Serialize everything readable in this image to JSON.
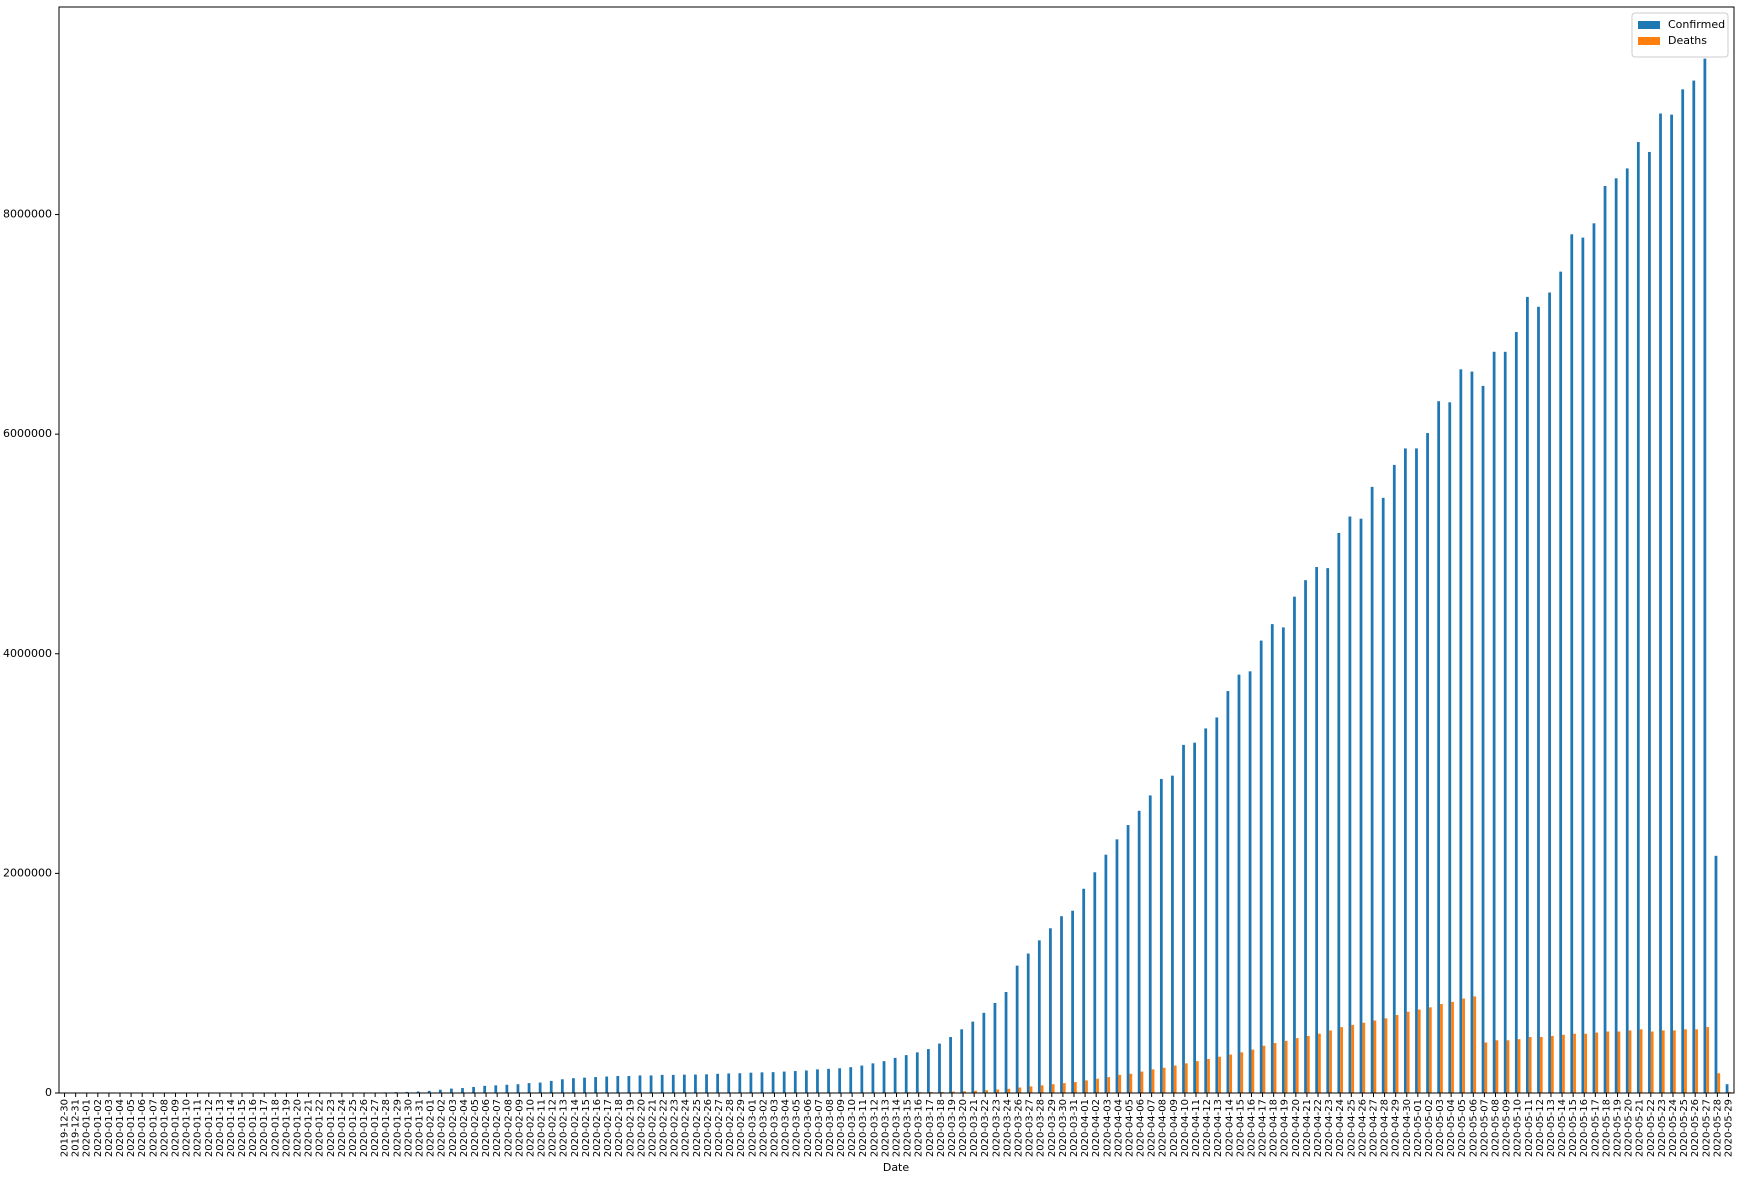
{
  "chart_data": {
    "type": "bar",
    "x_label": "Date",
    "categories": [
      "2019-12-30",
      "2019-12-31",
      "2020-01-01",
      "2020-01-02",
      "2020-01-03",
      "2020-01-04",
      "2020-01-05",
      "2020-01-06",
      "2020-01-07",
      "2020-01-08",
      "2020-01-09",
      "2020-01-10",
      "2020-01-11",
      "2020-01-12",
      "2020-01-13",
      "2020-01-14",
      "2020-01-15",
      "2020-01-16",
      "2020-01-17",
      "2020-01-18",
      "2020-01-19",
      "2020-01-20",
      "2020-01-21",
      "2020-01-22",
      "2020-01-23",
      "2020-01-24",
      "2020-01-25",
      "2020-01-26",
      "2020-01-27",
      "2020-01-28",
      "2020-01-29",
      "2020-01-30",
      "2020-01-31",
      "2020-02-01",
      "2020-02-02",
      "2020-02-03",
      "2020-02-04",
      "2020-02-05",
      "2020-02-06",
      "2020-02-07",
      "2020-02-08",
      "2020-02-09",
      "2020-02-10",
      "2020-02-11",
      "2020-02-12",
      "2020-02-13",
      "2020-02-14",
      "2020-02-15",
      "2020-02-16",
      "2020-02-17",
      "2020-02-18",
      "2020-02-19",
      "2020-02-20",
      "2020-02-21",
      "2020-02-22",
      "2020-02-23",
      "2020-02-24",
      "2020-02-25",
      "2020-02-26",
      "2020-02-27",
      "2020-02-28",
      "2020-02-29",
      "2020-03-01",
      "2020-03-02",
      "2020-03-03",
      "2020-03-04",
      "2020-03-05",
      "2020-03-06",
      "2020-03-07",
      "2020-03-08",
      "2020-03-09",
      "2020-03-10",
      "2020-03-11",
      "2020-03-12",
      "2020-03-13",
      "2020-03-14",
      "2020-03-15",
      "2020-03-16",
      "2020-03-17",
      "2020-03-18",
      "2020-03-19",
      "2020-03-20",
      "2020-03-21",
      "2020-03-22",
      "2020-03-23",
      "2020-03-24",
      "2020-03-26",
      "2020-03-27",
      "2020-03-28",
      "2020-03-29",
      "2020-03-30",
      "2020-03-31",
      "2020-04-01",
      "2020-04-02",
      "2020-04-03",
      "2020-04-04",
      "2020-04-05",
      "2020-04-06",
      "2020-04-07",
      "2020-04-08",
      "2020-04-09",
      "2020-04-10",
      "2020-04-11",
      "2020-04-12",
      "2020-04-13",
      "2020-04-14",
      "2020-04-15",
      "2020-04-16",
      "2020-04-17",
      "2020-04-18",
      "2020-04-19",
      "2020-04-20",
      "2020-04-21",
      "2020-04-22",
      "2020-04-23",
      "2020-04-24",
      "2020-04-25",
      "2020-04-26",
      "2020-04-27",
      "2020-04-28",
      "2020-04-29",
      "2020-04-30",
      "2020-05-01",
      "2020-05-02",
      "2020-05-03",
      "2020-05-04",
      "2020-05-05",
      "2020-05-06",
      "2020-05-07",
      "2020-05-08",
      "2020-05-09",
      "2020-05-10",
      "2020-05-11",
      "2020-05-12",
      "2020-05-13",
      "2020-05-14",
      "2020-05-15",
      "2020-05-16",
      "2020-05-17",
      "2020-05-18",
      "2020-05-19",
      "2020-05-20",
      "2020-05-21",
      "2020-05-22",
      "2020-05-23",
      "2020-05-24",
      "2020-05-25",
      "2020-05-26",
      "2020-05-27",
      "2020-05-28",
      "2020-05-29"
    ],
    "series": [
      {
        "name": "Confirmed",
        "color": "#1f77b4",
        "values": [
          27,
          27,
          27,
          27,
          44,
          44,
          59,
          59,
          59,
          59,
          59,
          41,
          41,
          41,
          41,
          41,
          41,
          45,
          62,
          121,
          198,
          291,
          300,
          600,
          900,
          1400,
          2000,
          3000,
          4500,
          6000,
          8000,
          10000,
          14000,
          20000,
          30000,
          40000,
          45000,
          55000,
          65000,
          70000,
          75000,
          80000,
          90000,
          95000,
          110000,
          125000,
          135000,
          140000,
          145000,
          150000,
          155000,
          155000,
          160000,
          160000,
          165000,
          165000,
          167000,
          168000,
          170000,
          175000,
          178000,
          180000,
          185000,
          188000,
          190000,
          195000,
          200000,
          205000,
          215000,
          220000,
          225000,
          235000,
          250000,
          270000,
          290000,
          320000,
          345000,
          370000,
          400000,
          450000,
          510000,
          580000,
          650000,
          730000,
          820000,
          920000,
          1160000,
          1270000,
          1390000,
          1500000,
          1610000,
          1660000,
          1860000,
          2010000,
          2170000,
          2310000,
          2440000,
          2570000,
          2710000,
          2860000,
          2890000,
          3170000,
          3190000,
          3320000,
          3420000,
          3660000,
          3810000,
          3840000,
          4120000,
          4270000,
          4240000,
          4520000,
          4670000,
          4790000,
          4780000,
          5100000,
          5250000,
          5230000,
          5520000,
          5420000,
          5720000,
          5870000,
          5870000,
          6010000,
          6300000,
          6290000,
          6590000,
          6570000,
          6440000,
          6750000,
          6750000,
          6930000,
          7250000,
          7160000,
          7290000,
          7480000,
          7820000,
          7790000,
          7920000,
          8260000,
          8330000,
          8420000,
          8660000,
          8570000,
          8920000,
          8910000,
          9140000,
          9220000,
          9420000,
          2160000,
          80000
        ]
      },
      {
        "name": "Deaths",
        "color": "#ff7f0e",
        "values": [
          0,
          0,
          0,
          0,
          0,
          0,
          0,
          0,
          0,
          0,
          0,
          0,
          0,
          0,
          0,
          0,
          0,
          0,
          0,
          0,
          0,
          0,
          6,
          17,
          25,
          41,
          56,
          80,
          106,
          132,
          170,
          213,
          259,
          304,
          362,
          426,
          492,
          565,
          638,
          724,
          813,
          910,
          1018,
          1115,
          1261,
          1383,
          1526,
          1669,
          1775,
          1873,
          2009,
          2126,
          2247,
          2360,
          2460,
          2618,
          2699,
          2763,
          2800,
          2858,
          2923,
          2977,
          3050,
          3117,
          3200,
          3280,
          3350,
          3460,
          3560,
          3800,
          4000,
          4300,
          4600,
          5000,
          5800,
          6500,
          7000,
          8000,
          9000,
          10000,
          13000,
          16000,
          20000,
          25000,
          32000,
          38000,
          50000,
          60000,
          70000,
          80000,
          90000,
          100000,
          115000,
          130000,
          145000,
          165000,
          175000,
          195000,
          215000,
          230000,
          250000,
          270000,
          290000,
          310000,
          330000,
          350000,
          370000,
          395000,
          430000,
          455000,
          475000,
          500000,
          520000,
          540000,
          570000,
          600000,
          620000,
          640000,
          660000,
          680000,
          710000,
          740000,
          760000,
          780000,
          810000,
          830000,
          860000,
          880000,
          460000,
          480000,
          480000,
          490000,
          510000,
          510000,
          520000,
          530000,
          540000,
          540000,
          550000,
          560000,
          560000,
          570000,
          580000,
          560000,
          570000,
          570000,
          580000,
          580000,
          600000,
          180000,
          10000
        ]
      }
    ],
    "ylim": [
      0,
      9890000
    ],
    "yticks": [
      0,
      2000000,
      4000000,
      6000000,
      8000000
    ],
    "legend": "upper right"
  }
}
